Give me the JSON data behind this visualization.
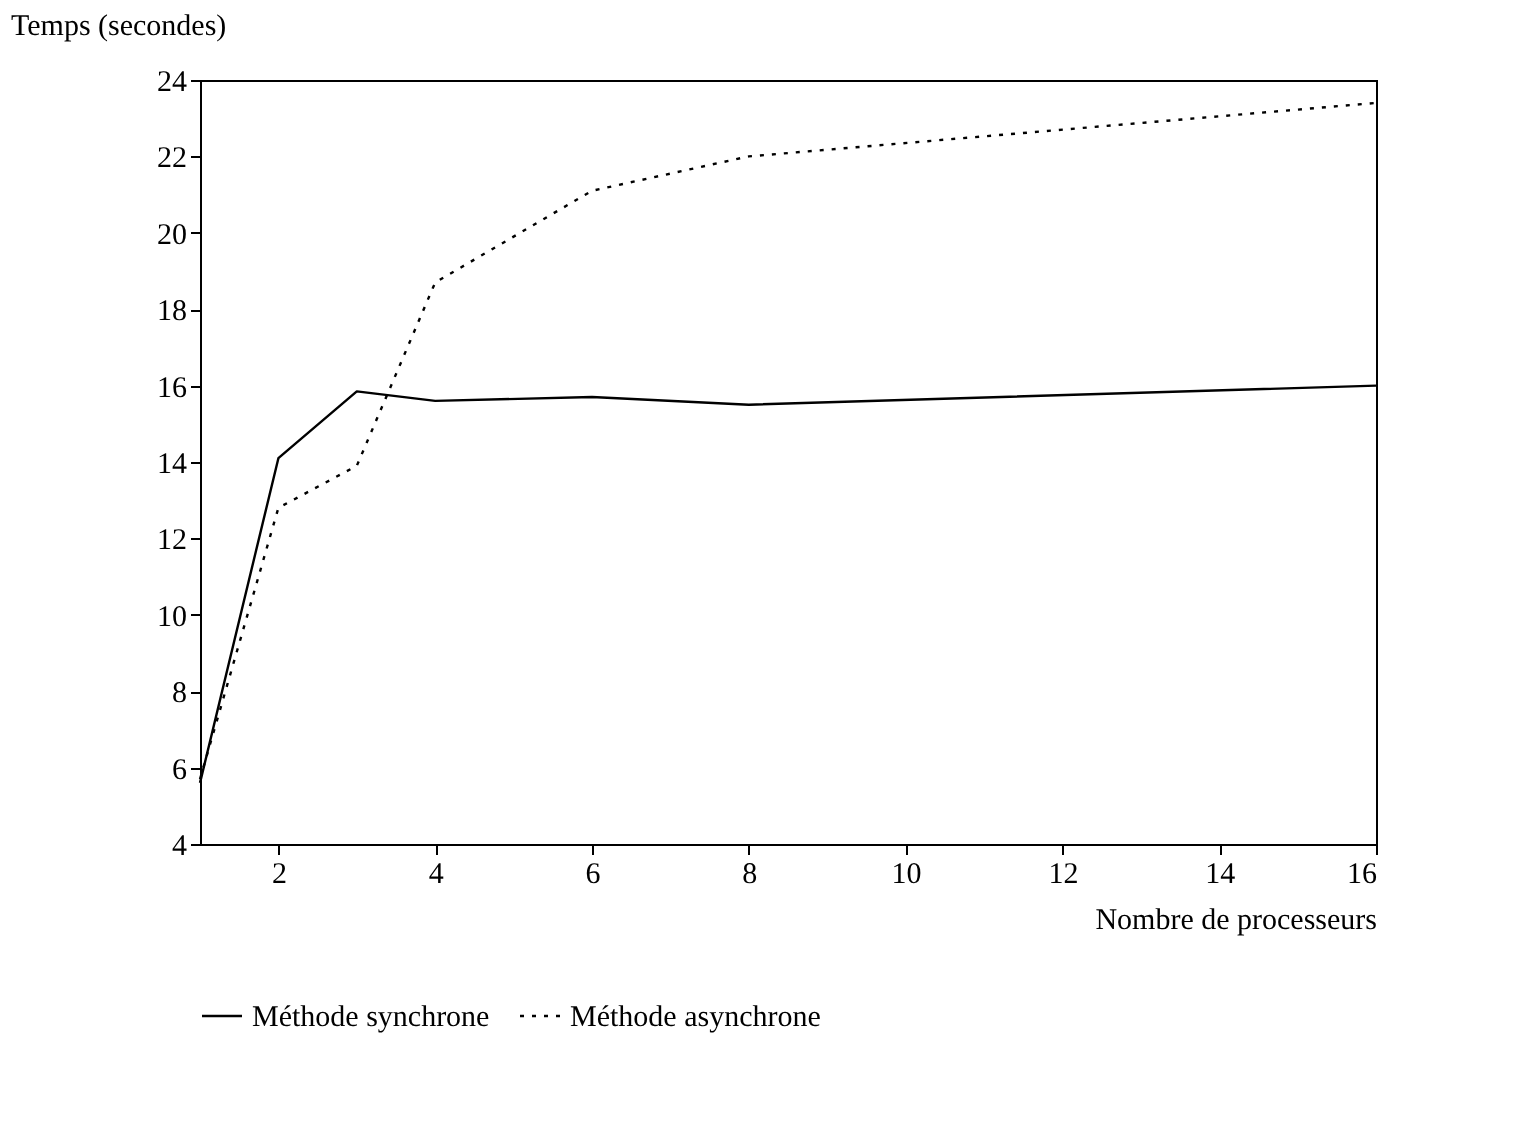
{
  "chart_data": {
    "type": "line",
    "xlabel": "Nombre de processeurs",
    "ylabel": "Temps (secondes)",
    "x": [
      1,
      2,
      3,
      4,
      6,
      8,
      16
    ],
    "series": [
      {
        "name": "Méthode synchrone",
        "color": "#000000",
        "line_style": "solid",
        "values": [
          5.6,
          14.1,
          15.85,
          15.6,
          15.7,
          15.5,
          16.0
        ]
      },
      {
        "name": "Méthode asynchrone",
        "color": "#000000",
        "line_style": "dotted",
        "values": [
          5.7,
          12.8,
          13.9,
          18.7,
          21.1,
          22.0,
          23.4
        ]
      }
    ],
    "xlim": [
      1,
      16
    ],
    "xticks": [
      2,
      4,
      6,
      8,
      10,
      12,
      14,
      16
    ],
    "ylim": [
      4,
      24
    ],
    "yticks": [
      4,
      6,
      8,
      10,
      12,
      14,
      16,
      18,
      20,
      22,
      24
    ],
    "grid": false,
    "legend": "bottom",
    "marker": "none"
  }
}
